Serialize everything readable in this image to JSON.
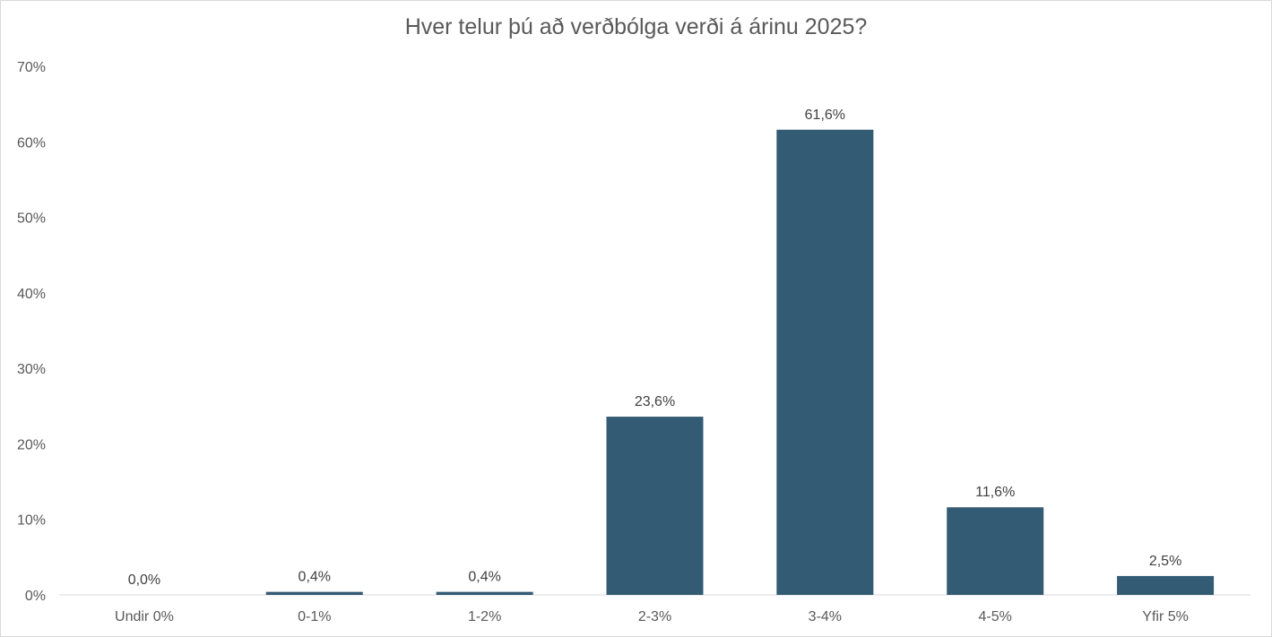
{
  "chart_data": {
    "type": "bar",
    "title": "Hver telur þú að verðbólga verði á árinu 2025?",
    "xlabel": "",
    "ylabel": "",
    "ylim": [
      0,
      70
    ],
    "y_ticks": [
      "0%",
      "10%",
      "20%",
      "30%",
      "40%",
      "50%",
      "60%",
      "70%"
    ],
    "y_tick_values": [
      0,
      10,
      20,
      30,
      40,
      50,
      60,
      70
    ],
    "categories": [
      "Undir 0%",
      "0-1%",
      "1-2%",
      "2-3%",
      "3-4%",
      "4-5%",
      "Yfir 5%"
    ],
    "values": [
      0.0,
      0.4,
      0.4,
      23.6,
      61.6,
      11.6,
      2.5
    ],
    "data_labels": [
      "0,0%",
      "0,4%",
      "0,4%",
      "23,6%",
      "61,6%",
      "11,6%",
      "2,5%"
    ],
    "bar_color": "#335b74",
    "grid": false,
    "legend": "none"
  }
}
